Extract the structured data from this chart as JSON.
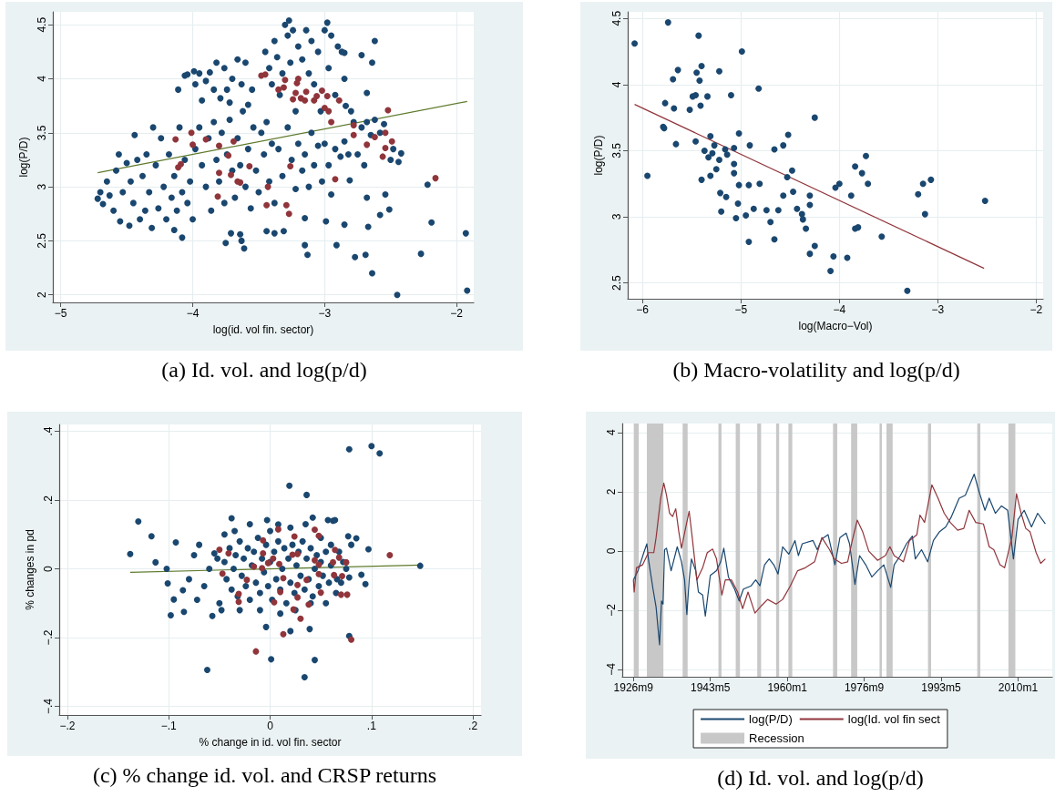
{
  "chart_data": [
    {
      "type": "scatter",
      "xlabel": "log(id. vol fin. sector)",
      "ylabel": "log(P/D)",
      "annotations": [
        "(a) Id. vol. and log(p/d)"
      ],
      "xlim": [
        -5.06,
        -1.87
      ],
      "ylim": [
        1.93,
        4.62
      ],
      "xticks": [
        {
          "value": -5,
          "label": "−5"
        },
        {
          "value": -4,
          "label": "−4"
        },
        {
          "value": -3,
          "label": "−3"
        },
        {
          "value": -2,
          "label": "−2"
        }
      ],
      "yticks": [
        2,
        2.5,
        3,
        3.5,
        4,
        4.5
      ],
      "grid": true,
      "marker": "circle",
      "series": [
        {
          "color": "#1a476f",
          "x": [
            -1.93,
            -1.92,
            -2.45,
            -2.27,
            -2.19,
            -2.22,
            -2.64,
            -2.69,
            -2.77,
            -2.62,
            -2.64,
            -2.72,
            -2.42,
            -2.44,
            -2.54,
            -2.51,
            -2.58,
            -2.67,
            -2.85,
            -2.91,
            -2.99,
            -3.13,
            -3.15,
            -3.15,
            -3.31,
            -3.38,
            -3.44,
            -3.61,
            -3.63,
            -3.64,
            -3.71,
            -3.75,
            -4.08,
            -4.14,
            -3.27,
            -2.98,
            -2.68,
            -2.85,
            -2.85,
            -2.81,
            -2.68,
            -4.72,
            -4.7,
            -4.68,
            -4.65,
            -4.63,
            -4.6,
            -4.58,
            -4.56,
            -4.55,
            -4.53,
            -4.5,
            -4.48,
            -4.47,
            -4.45,
            -4.44,
            -4.42,
            -4.4,
            -4.38,
            -4.36,
            -4.35,
            -4.33,
            -4.31,
            -4.3,
            -4.28,
            -4.26,
            -4.24,
            -4.22,
            -4.2,
            -4.18,
            -4.16,
            -4.14,
            -4.12,
            -4.1,
            -4.08,
            -4.06,
            -4.04,
            -4.02,
            -4.0,
            -4.11,
            -4.06,
            -4.04,
            -3.99,
            -3.98,
            -3.95,
            -3.93,
            -3.9,
            -3.87,
            -3.84,
            -3.82,
            -3.79,
            -3.76,
            -3.74,
            -3.72,
            -3.7,
            -3.66,
            -3.63,
            -3.6,
            -3.58,
            -3.55,
            -3.98,
            -3.95,
            -3.93,
            -3.9,
            -3.88,
            -3.86,
            -3.84,
            -3.82,
            -3.8,
            -3.78,
            -3.76,
            -3.74,
            -3.72,
            -3.7,
            -3.68,
            -3.66,
            -3.64,
            -3.62,
            -3.6,
            -3.58,
            -3.56,
            -3.54,
            -3.52,
            -3.5,
            -3.48,
            -3.46,
            -3.44,
            -3.42,
            -3.4,
            -3.38,
            -3.45,
            -3.42,
            -3.4,
            -3.38,
            -3.36,
            -3.34,
            -3.32,
            -3.3,
            -3.28,
            -3.26,
            -3.24,
            -3.22,
            -3.2,
            -3.17,
            -3.14,
            -3.12,
            -3.1,
            -3.08,
            -3.05,
            -3.03,
            -3.0,
            -2.97,
            -2.95,
            -2.92,
            -2.9,
            -2.87,
            -2.84,
            -2.8,
            -3.35,
            -3.32,
            -3.28,
            -3.25,
            -3.22,
            -3.2,
            -3.17,
            -3.15,
            -3.12,
            -3.1,
            -3.08,
            -3.05,
            -3.02,
            -3.0,
            -2.97,
            -2.95,
            -2.92,
            -2.88,
            -2.85,
            -2.82,
            -2.78,
            -2.75,
            -2.72,
            -2.7,
            -2.68,
            -2.65,
            -2.62,
            -2.58,
            -2.55,
            -2.5,
            -2.48
          ],
          "values": [
            2.57,
            2.04,
            2.0,
            2.38,
            2.67,
            3.02,
            2.2,
            2.37,
            2.35,
            4.35,
            4.15,
            4.22,
            3.31,
            3.23,
            2.93,
            2.79,
            2.74,
            2.63,
            2.65,
            2.46,
            2.68,
            2.37,
            2.46,
            2.71,
            2.59,
            2.57,
            2.59,
            2.43,
            2.5,
            2.56,
            2.57,
            2.48,
            2.53,
            2.6,
            4.54,
            4.52,
            3.87,
            4.0,
            4.24,
            3.06,
            2.9,
            2.89,
            2.95,
            2.84,
            3.05,
            2.92,
            2.78,
            3.15,
            3.3,
            2.68,
            2.95,
            3.22,
            2.64,
            3.05,
            2.85,
            3.48,
            3.25,
            2.7,
            3.1,
            2.78,
            3.3,
            2.95,
            2.62,
            3.55,
            3.2,
            2.8,
            3.45,
            3.0,
            2.7,
            3.3,
            2.9,
            3.1,
            2.78,
            3.55,
            2.95,
            3.25,
            2.85,
            3.05,
            2.7,
            3.9,
            4.03,
            4.04,
            4.07,
            3.95,
            4.05,
            3.8,
            3.98,
            4.06,
            3.9,
            4.15,
            3.82,
            4.1,
            3.9,
            3.78,
            4.0,
            4.18,
            3.95,
            4.15,
            3.76,
            3.9,
            3.35,
            3.55,
            3.2,
            3.0,
            3.45,
            2.78,
            3.6,
            3.25,
            3.05,
            3.5,
            2.85,
            3.3,
            3.62,
            3.15,
            2.9,
            3.45,
            3.2,
            3.7,
            3.0,
            3.35,
            2.8,
            3.55,
            3.15,
            2.95,
            3.5,
            3.3,
            3.6,
            3.05,
            3.4,
            2.85,
            4.25,
            4.1,
            3.95,
            4.35,
            4.2,
            3.85,
            4.05,
            4.5,
            4.4,
            4.15,
            4.45,
            3.7,
            4.3,
            4.18,
            4.45,
            4.05,
            4.35,
            3.95,
            4.25,
            3.7,
            4.45,
            4.1,
            4.4,
            3.85,
            4.3,
            4.25,
            3.75,
            3.7,
            3.35,
            3.1,
            3.55,
            3.25,
            2.98,
            3.4,
            3.15,
            3.3,
            3.0,
            3.5,
            3.2,
            3.38,
            3.05,
            3.4,
            3.2,
            2.93,
            3.35,
            3.28,
            3.42,
            3.3,
            3.6,
            3.3,
            3.55,
            3.2,
            3.6,
            3.48,
            3.62,
            3.5,
            3.58,
            3.25,
            3.35
          ]
        },
        {
          "color": "#90353b",
          "x": [
            -4.13,
            -4.01,
            -4.0,
            -4.09,
            -4.11,
            -3.9,
            -3.8,
            -3.8,
            -3.81,
            -3.73,
            -3.71,
            -3.69,
            -3.66,
            -3.64,
            -3.57,
            -3.48,
            -3.45,
            -3.44,
            -3.43,
            -3.35,
            -3.31,
            -3.3,
            -3.29,
            -3.27,
            -3.26,
            -3.24,
            -3.22,
            -3.21,
            -3.2,
            -3.18,
            -3.15,
            -3.14,
            -3.08,
            -3.06,
            -3.02,
            -3.0,
            -2.98,
            -2.97,
            -2.95,
            -2.92,
            -2.89,
            -2.78,
            -2.78,
            -2.68,
            -2.62,
            -2.56,
            -2.54,
            -2.54,
            -2.52,
            -2.49,
            -2.16
          ],
          "values": [
            3.44,
            3.5,
            3.39,
            3.21,
            3.18,
            3.44,
            3.38,
            3.13,
            2.91,
            3.29,
            3.11,
            3.42,
            3.05,
            3.04,
            3.19,
            4.03,
            4.04,
            2.83,
            3.0,
            3.9,
            3.92,
            3.99,
            2.83,
            2.75,
            3.19,
            3.81,
            3.87,
            3.96,
            4.0,
            3.82,
            3.8,
            3.88,
            3.8,
            3.84,
            3.89,
            3.73,
            3.84,
            3.7,
            3.6,
            3.07,
            3.8,
            3.57,
            3.48,
            3.39,
            3.46,
            3.28,
            3.36,
            3.5,
            3.71,
            3.42,
            3.08
          ]
        },
        {
          "type": "line",
          "marker": "none",
          "color": "#5e7a2c",
          "x": [
            -4.72,
            -1.92
          ],
          "values": [
            3.13,
            3.79
          ]
        }
      ]
    },
    {
      "type": "scatter",
      "xlabel": "log(Macro−Vol)",
      "ylabel": "log(P/D)",
      "annotations": [
        "(b) Macro-volatility and log(p/d)"
      ],
      "xlim": [
        -6.15,
        -1.93
      ],
      "ylim": [
        2.38,
        4.55
      ],
      "xticks": [
        {
          "value": -6,
          "label": "−6"
        },
        {
          "value": -5,
          "label": "−5"
        },
        {
          "value": -4,
          "label": "−4"
        },
        {
          "value": -3,
          "label": "−3"
        },
        {
          "value": -2,
          "label": "−2"
        }
      ],
      "yticks": [
        2.5,
        3,
        3.5,
        4,
        4.5
      ],
      "grid": true,
      "marker": "circle",
      "series": [
        {
          "color": "#1a476f",
          "x": [
            -6.08,
            -5.95,
            -5.74,
            -5.79,
            -5.78,
            -5.77,
            -5.69,
            -5.68,
            -5.66,
            -5.64,
            -5.52,
            -5.49,
            -5.46,
            -5.46,
            -5.45,
            -5.43,
            -5.42,
            -5.41,
            -5.4,
            -5.4,
            -5.37,
            -5.34,
            -5.33,
            -5.31,
            -5.31,
            -5.29,
            -5.27,
            -5.25,
            -5.22,
            -5.22,
            -5.21,
            -5.2,
            -5.16,
            -5.15,
            -5.14,
            -5.1,
            -5.07,
            -5.07,
            -5.07,
            -5.05,
            -5.03,
            -5.02,
            -5.02,
            -4.99,
            -4.95,
            -4.92,
            -4.92,
            -4.91,
            -4.87,
            -4.82,
            -4.81,
            -4.74,
            -4.7,
            -4.66,
            -4.66,
            -4.62,
            -4.57,
            -4.57,
            -4.53,
            -4.52,
            -4.48,
            -4.47,
            -4.43,
            -4.38,
            -4.37,
            -4.34,
            -4.3,
            -4.3,
            -4.3,
            -4.25,
            -4.25,
            -4.09,
            -4.06,
            -4.04,
            -4.0,
            -3.92,
            -3.88,
            -3.84,
            -3.84,
            -3.81,
            -3.77,
            -3.73,
            -3.71,
            -3.57,
            -3.31,
            -3.2,
            -3.15,
            -3.13,
            -3.07,
            -2.52
          ],
          "values": [
            4.31,
            3.31,
            4.47,
            3.68,
            3.67,
            3.86,
            4.04,
            3.82,
            3.55,
            4.11,
            3.81,
            3.91,
            3.92,
            3.57,
            4.09,
            4.37,
            4.03,
            3.84,
            4.14,
            3.28,
            3.5,
            3.91,
            3.45,
            3.61,
            3.31,
            3.48,
            3.54,
            3.36,
            3.43,
            4.1,
            3.18,
            3.04,
            3.51,
            3.15,
            3.47,
            3.92,
            3.4,
            3.33,
            3.52,
            2.99,
            3.1,
            3.24,
            3.63,
            4.25,
            3.01,
            3.24,
            2.81,
            3.54,
            3.06,
            3.97,
            3.25,
            3.05,
            2.96,
            3.51,
            2.83,
            3.05,
            3.54,
            3.16,
            3.3,
            3.62,
            3.35,
            3.19,
            3.06,
            3.02,
            2.98,
            2.91,
            3.16,
            2.72,
            3.09,
            3.75,
            2.78,
            2.59,
            2.7,
            3.22,
            3.25,
            2.69,
            3.16,
            3.38,
            2.91,
            2.92,
            3.33,
            3.46,
            3.25,
            2.85,
            2.44,
            3.17,
            3.25,
            3.02,
            3.28,
            3.12
          ]
        },
        {
          "type": "line",
          "marker": "none",
          "color": "#90353b",
          "x": [
            -6.08,
            -2.53
          ],
          "values": [
            3.85,
            2.61
          ]
        }
      ]
    },
    {
      "type": "scatter",
      "xlabel": "% change in id. vol fin. sector",
      "ylabel": "% changes in pd",
      "annotations": [
        "(c) % change id. vol. and CRSP returns"
      ],
      "xlim": [
        -0.208,
        0.208
      ],
      "ylim": [
        -0.425,
        0.42
      ],
      "xticks": [
        {
          "value": -0.2,
          "label": "−.2"
        },
        {
          "value": -0.1,
          "label": "−.1"
        },
        0,
        {
          "value": 0.1,
          "label": ".1"
        },
        {
          "value": 0.2,
          "label": ".2"
        }
      ],
      "yticks": [
        {
          "value": -0.4,
          "label": "−.4"
        },
        {
          "value": -0.2,
          "label": "−.2"
        },
        0,
        {
          "value": 0.2,
          "label": ".2"
        },
        {
          "value": 0.4,
          "label": ".4"
        }
      ],
      "grid": true,
      "marker": "circle",
      "series": [
        {
          "color": "#1a476f",
          "x": [
            0.078,
            0.1,
            0.108,
            0.019,
            0.036,
            0.148,
            -0.138,
            -0.13,
            -0.117,
            -0.113,
            -0.102,
            -0.101,
            -0.098,
            -0.095,
            -0.093,
            -0.086,
            -0.085,
            -0.062,
            -0.057,
            -0.038,
            0.001,
            0.034,
            0.044,
            0.02,
            0.039,
            -0.004,
            0.078,
            0.097,
            0.094,
            0.09,
            0.085,
            0.077,
            0.042,
            0.057,
            0.064,
            -0.003,
            0.008,
            -0.045,
            -0.043,
            -0.04,
            -0.038,
            -0.036,
            -0.034,
            -0.032,
            -0.03,
            -0.028,
            -0.026,
            -0.024,
            -0.022,
            -0.02,
            -0.018,
            -0.016,
            -0.014,
            -0.012,
            -0.01,
            -0.008,
            -0.006,
            -0.004,
            -0.002,
            0,
            0.002,
            0.004,
            0.006,
            0.008,
            0.01,
            0.012,
            0.014,
            0.016,
            0.018,
            0.02,
            0.022,
            0.024,
            0.026,
            0.028,
            0.03,
            0.032,
            0.034,
            0.036,
            0.038,
            0.04,
            0.042,
            0.044,
            0.046,
            0.048,
            0.05,
            0.052,
            0.055,
            0.058,
            0.06,
            -0.07,
            -0.065,
            -0.06,
            -0.055,
            -0.05,
            -0.052,
            -0.048,
            -0.045,
            -0.035,
            -0.03,
            -0.02,
            -0.01,
            0,
            0.01,
            0.02,
            0.025,
            0.035,
            0.04,
            0.05,
            0.055,
            0.06,
            0.065,
            0.068,
            0.07,
            0.072,
            0.075,
            0.08,
            -0.075,
            -0.08,
            -0.072,
            0.062,
            0.066,
            0.078
          ],
          "values": [
            0.348,
            0.357,
            0.336,
            0.242,
            0.215,
            0.009,
            0.043,
            0.138,
            0.095,
            0.019,
            0,
            -0.042,
            -0.135,
            -0.089,
            0.077,
            -0.062,
            -0.125,
            -0.294,
            -0.137,
            0.147,
            -0.263,
            -0.315,
            -0.265,
            -0.181,
            -0.175,
            -0.169,
            -0.195,
            0.057,
            -0.044,
            -0.017,
            0.089,
            0.095,
            0.149,
            0.142,
            0.142,
            0.142,
            0.129,
            0.02,
            -0.03,
            0.06,
            -0.06,
            0,
            0.04,
            -0.08,
            0.08,
            -0.02,
            0.03,
            -0.05,
            0.06,
            -0.09,
            0.01,
            0.05,
            -0.04,
            0.09,
            -0.07,
            0.03,
            -0.01,
            0.07,
            -0.05,
            0.02,
            -0.09,
            0.05,
            -0.03,
            0.08,
            -0.06,
            0,
            0.06,
            -0.1,
            0.03,
            -0.04,
            0.07,
            -0.07,
            0.01,
            0.05,
            -0.02,
            0.08,
            -0.06,
            0.03,
            -0.03,
            0.06,
            -0.08,
            0,
            0.04,
            -0.05,
            0.02,
            -0.02,
            0.05,
            -0.04,
            0.01,
            0.07,
            -0.05,
            0,
            0.045,
            -0.1,
            0.03,
            -0.12,
            0.1,
            0.11,
            -0.12,
            0.13,
            -0.12,
            0.11,
            -0.13,
            0.12,
            -0.12,
            0.13,
            -0.1,
            0.09,
            -0.1,
            0.07,
            -0.07,
            0.05,
            -0.04,
            0.02,
            0,
            0.07,
            0.04,
            -0.03,
            -0.09,
            0.14,
            -0.03,
            -0.025
          ]
        },
        {
          "color": "#90353b",
          "x": [
            0.118,
            0.08,
            -0.014,
            0.013,
            0.07,
            0.076,
            0.044,
            0.048,
            0.024,
            0.008,
            -0.007,
            -0.05,
            -0.041,
            -0.007,
            0.003,
            0.009,
            0.022,
            0.027,
            0.064,
            0.068,
            0.062,
            0.075,
            0.071,
            0.063,
            0.048,
            0.044,
            0.048,
            0.036,
            0.05,
            0.027,
            0.027,
            0.03,
            0.023,
            0.038,
            0.01,
            0.013,
            0.004,
            -0.023,
            -0.031,
            -0.031,
            -0.016,
            -0.008,
            -0.002,
            -0.047
          ],
          "values": [
            0.04,
            -0.206,
            -0.24,
            -0.19,
            -0.075,
            -0.075,
            0.114,
            0.096,
            0.094,
            0.115,
            0.083,
            0.056,
            0.045,
            0.045,
            0.03,
            0.014,
            0.041,
            0.043,
            0.055,
            0.033,
            0.019,
            0.019,
            -0.021,
            -0.018,
            0.012,
            0.025,
            -0.015,
            -0.032,
            -0.069,
            -0.047,
            -0.083,
            -0.145,
            -0.118,
            -0.104,
            -0.067,
            -0.027,
            -0.097,
            -0.032,
            -0.073,
            -0.096,
            0.007,
            0.002,
            0.017,
            -0.014
          ]
        },
        {
          "type": "line",
          "marker": "none",
          "color": "#5e7a2c",
          "x": [
            -0.138,
            0.148
          ],
          "values": [
            -0.01,
            0.011
          ]
        }
      ]
    },
    {
      "type": "line",
      "annotations": [
        "(d) Id. vol. and log(p/d)"
      ],
      "xlim": [
        "1924-04",
        "2017-06"
      ],
      "ylim": [
        -4.25,
        4.3
      ],
      "xticks": [
        {
          "value": "1926-09",
          "label": "1926m9"
        },
        {
          "value": "1943-05",
          "label": "1943m5"
        },
        {
          "value": "1960-01",
          "label": "1960m1"
        },
        {
          "value": "1976-09",
          "label": "1976m9"
        },
        {
          "value": "1993-05",
          "label": "1993m5"
        },
        {
          "value": "2010-01",
          "label": "2010m1"
        }
      ],
      "yticks": [
        {
          "value": -4,
          "label": "−4"
        },
        {
          "value": -2,
          "label": "−2"
        },
        0,
        2,
        4
      ],
      "grid": "y",
      "legend": "bottom",
      "bands": [
        {
          "axis": "x",
          "from": "1926-10",
          "to": "1927-11",
          "label": "Recession",
          "color": "#c8c8c8"
        },
        {
          "axis": "x",
          "from": "1929-08",
          "to": "1933-03",
          "color": "#c8c8c8"
        },
        {
          "axis": "x",
          "from": "1937-05",
          "to": "1938-06",
          "color": "#c8c8c8"
        },
        {
          "axis": "x",
          "from": "1945-02",
          "to": "1945-10",
          "color": "#c8c8c8"
        },
        {
          "axis": "x",
          "from": "1948-11",
          "to": "1949-10",
          "color": "#c8c8c8"
        },
        {
          "axis": "x",
          "from": "1953-07",
          "to": "1954-05",
          "color": "#c8c8c8"
        },
        {
          "axis": "x",
          "from": "1957-08",
          "to": "1958-04",
          "color": "#c8c8c8"
        },
        {
          "axis": "x",
          "from": "1960-04",
          "to": "1961-02",
          "color": "#c8c8c8"
        },
        {
          "axis": "x",
          "from": "1969-12",
          "to": "1970-11",
          "color": "#c8c8c8"
        },
        {
          "axis": "x",
          "from": "1973-11",
          "to": "1975-03",
          "color": "#c8c8c8"
        },
        {
          "axis": "x",
          "from": "1980-01",
          "to": "1980-07",
          "color": "#c8c8c8"
        },
        {
          "axis": "x",
          "from": "1981-07",
          "to": "1982-11",
          "color": "#c8c8c8"
        },
        {
          "axis": "x",
          "from": "1990-07",
          "to": "1991-03",
          "color": "#c8c8c8"
        },
        {
          "axis": "x",
          "from": "2001-03",
          "to": "2001-11",
          "color": "#c8c8c8"
        },
        {
          "axis": "x",
          "from": "2007-12",
          "to": "2009-06",
          "color": "#c8c8c8"
        }
      ],
      "series": [
        {
          "name": "log(P/D)",
          "color": "#1a476f",
          "x": [
            "1926-09",
            "1927-09",
            "1928-12",
            "1929-08",
            "1929-12",
            "1930-12",
            "1931-08",
            "1932-05",
            "1932-10",
            "1933-02",
            "1933-06",
            "1933-11",
            "1934-11",
            "1936-03",
            "1937-02",
            "1937-10",
            "1938-04",
            "1938-10",
            "1939-04",
            "1940-03",
            "1940-10",
            "1941-09",
            "1942-04",
            "1943-05",
            "1944-09",
            "1945-08",
            "1946-04",
            "1947-04",
            "1948-08",
            "1949-08",
            "1950-07",
            "1952-03",
            "1953-03",
            "1954-02",
            "1955-02",
            "1956-02",
            "1957-02",
            "1958-01",
            "1959-01",
            "1960-05",
            "1961-09",
            "1962-06",
            "1963-04",
            "1965-08",
            "1966-07",
            "1967-07",
            "1968-11",
            "1970-05",
            "1971-06",
            "1972-10",
            "1973-07",
            "1974-09",
            "1975-09",
            "1977-01",
            "1978-05",
            "1979-08",
            "1980-12",
            "1982-06",
            "1983-03",
            "1984-07",
            "1985-11",
            "1987-02",
            "1987-10",
            "1989-02",
            "1990-06",
            "1991-09",
            "1993-01",
            "1994-05",
            "1995-08",
            "1997-04",
            "1998-08",
            "2000-07",
            "2001-07",
            "2002-11",
            "2003-10",
            "2005-02",
            "2006-06",
            "2007-10",
            "2009-01",
            "2010-01",
            "2011-05",
            "2012-12",
            "2014-04",
            "2015-12"
          ],
          "values": [
            -0.98,
            -0.67,
            -0.06,
            0.24,
            -0.27,
            -1.29,
            -1.9,
            -3.17,
            -1.69,
            -1.8,
            0.04,
            0.09,
            -0.67,
            0.14,
            -0.37,
            -0.98,
            -2.15,
            -0.98,
            -0.27,
            -0.67,
            -1.39,
            -1.49,
            -2.2,
            -0.83,
            -0.67,
            -0.37,
            0.09,
            -0.88,
            -1.29,
            -1.69,
            -1.29,
            -1.18,
            -0.98,
            -1.18,
            -0.47,
            -0.27,
            -0.47,
            -0.78,
            0.14,
            -0.11,
            0.35,
            -0.16,
            0.24,
            0.35,
            0.04,
            0.4,
            0.55,
            -0.47,
            0.45,
            0.6,
            0.24,
            -1.13,
            -0.16,
            -0.47,
            -0.88,
            -0.67,
            -0.47,
            -1.23,
            -0.47,
            -0.16,
            0.24,
            0.5,
            -0.27,
            0.04,
            -0.37,
            0.35,
            0.65,
            0.81,
            1.16,
            1.78,
            1.88,
            2.59,
            2.03,
            1.37,
            1.78,
            1.27,
            1.52,
            1.37,
            -0.27,
            1.06,
            1.37,
            0.81,
            1.27,
            0.91
          ]
        },
        {
          "name": "log(Id. vol fin sect",
          "color": "#90353b",
          "x": [
            "1926-09",
            "1926-11",
            "1927-05",
            "1928-09",
            "1929-12",
            "1931-02",
            "1931-08",
            "1932-08",
            "1933-04",
            "1933-11",
            "1934-07",
            "1935-03",
            "1935-11",
            "1936-07",
            "1937-02",
            "1938-02",
            "1938-10",
            "1939-06",
            "1940-06",
            "1941-09",
            "1942-09",
            "1943-11",
            "1944-09",
            "1945-11",
            "1946-08",
            "1947-12",
            "1949-04",
            "1950-05",
            "1951-07",
            "1953-01",
            "1954-06",
            "1955-10",
            "1957-08",
            "1959-01",
            "1960-09",
            "1962-04",
            "1963-12",
            "1965-12",
            "1967-07",
            "1969-03",
            "1970-03",
            "1971-10",
            "1973-02",
            "1974-02",
            "1975-03",
            "1976-05",
            "1977-09",
            "1979-08",
            "1981-04",
            "1982-04",
            "1983-03",
            "1985-03",
            "1986-07",
            "1988-02",
            "1988-10",
            "1989-10",
            "1991-05",
            "1992-09",
            "1994-01",
            "1995-05",
            "1996-12",
            "1998-04",
            "1999-06",
            "2000-11",
            "2002-07",
            "2003-10",
            "2004-10",
            "2006-02",
            "2007-02",
            "2008-09",
            "2009-09",
            "2010-09",
            "2011-09",
            "2012-08",
            "2013-12",
            "2014-12",
            "2015-12"
          ],
          "values": [
            -0.98,
            -1.39,
            -0.57,
            -0.47,
            -0.06,
            -0.06,
            0.45,
            1.78,
            2.29,
            1.88,
            1.27,
            1.16,
            1.42,
            0.65,
            0.09,
            0.86,
            1.34,
            0.45,
            -0.98,
            -0.57,
            -0.06,
            0.06,
            -0.27,
            -1.49,
            -0.98,
            -0.98,
            -1.39,
            -1.95,
            -1.39,
            -2.1,
            -1.85,
            -1.64,
            -1.8,
            -1.64,
            -1.18,
            -0.67,
            -0.57,
            -0.37,
            0.45,
            0.04,
            -0.27,
            -0.42,
            -0.37,
            0.35,
            1.04,
            0.65,
            -0.01,
            -0.32,
            -0.16,
            0.14,
            -0.16,
            -0.37,
            0.35,
            0.55,
            1.21,
            0.96,
            2.23,
            1.78,
            1.27,
            0.96,
            0.7,
            0.76,
            1.37,
            0.96,
            0.91,
            0.14,
            0.04,
            -0.47,
            -0.57,
            0.45,
            1.93,
            1.27,
            0.76,
            0.65,
            -0.06,
            -0.42,
            -0.27
          ]
        }
      ]
    }
  ]
}
